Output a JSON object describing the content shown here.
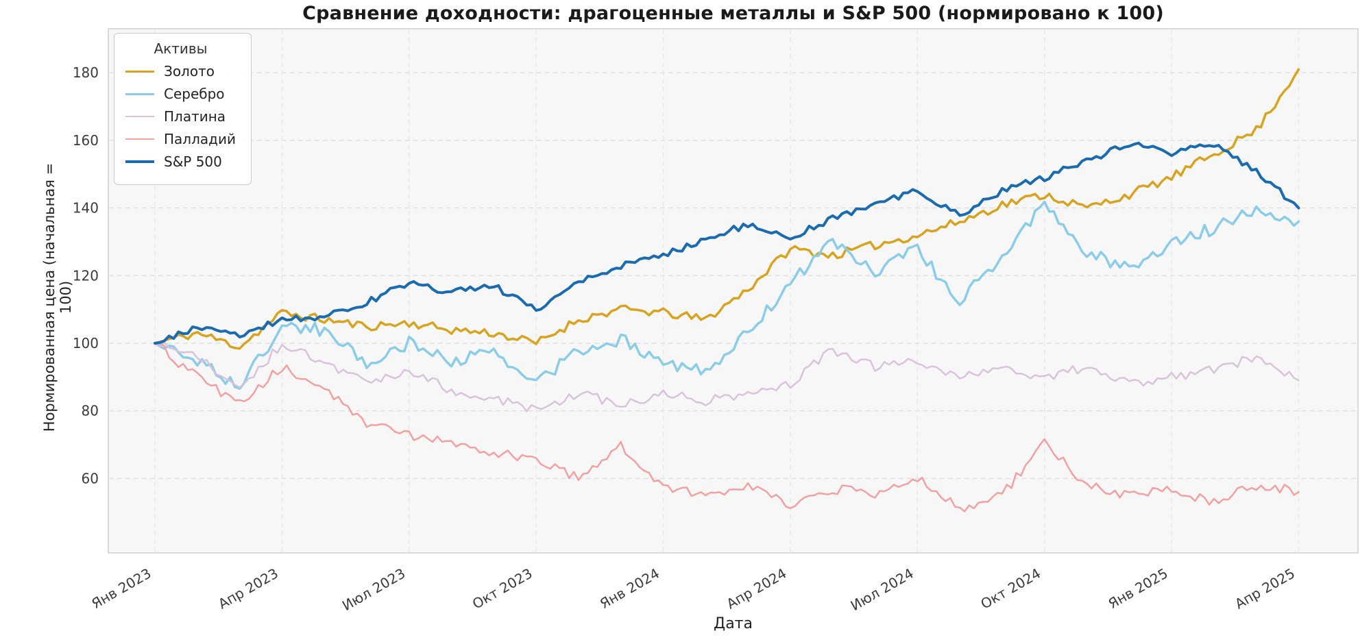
{
  "chart_data": {
    "type": "line",
    "title": "Сравнение доходности: драгоценные металлы и S&P 500 (нормировано к 100)",
    "xlabel": "Дата",
    "ylabel": "Нормированная цена (начальная = 100)",
    "legend_title": "Активы",
    "legend_position": "upper left",
    "grid": "dashed",
    "plot_bg": "#f7f7f7",
    "grid_color": "#dfdfdf",
    "ylim": [
      38,
      193
    ],
    "yticks": [
      60,
      80,
      100,
      120,
      140,
      160,
      180
    ],
    "x_unit": "months_since_2023-01",
    "xticks": [
      {
        "m": 0,
        "label": "Янв 2023"
      },
      {
        "m": 3,
        "label": "Апр 2023"
      },
      {
        "m": 6,
        "label": "Июл 2023"
      },
      {
        "m": 9,
        "label": "Окт 2023"
      },
      {
        "m": 12,
        "label": "Янв 2024"
      },
      {
        "m": 15,
        "label": "Апр 2024"
      },
      {
        "m": 18,
        "label": "Июл 2024"
      },
      {
        "m": 21,
        "label": "Окт 2024"
      },
      {
        "m": 24,
        "label": "Янв 2025"
      },
      {
        "m": 27,
        "label": "Апр 2025"
      }
    ],
    "series": [
      {
        "name": "Золото",
        "color": "#d8a420",
        "width": 3.5,
        "noise": 1.3,
        "values": [
          100,
          103,
          99,
          109,
          107,
          105,
          106,
          104,
          103,
          100,
          107,
          110,
          109,
          107,
          116,
          128,
          126,
          129,
          132,
          136,
          141,
          144,
          140,
          144,
          149,
          156,
          163,
          181
        ]
      },
      {
        "name": "Серебро",
        "color": "#8bcde9",
        "width": 3.5,
        "noise": 1.9,
        "values": [
          100,
          95,
          87,
          105,
          104,
          94,
          100,
          95,
          97,
          88,
          98,
          101,
          95,
          91,
          103,
          118,
          130,
          121,
          128,
          112,
          126,
          141,
          127,
          122,
          130,
          134,
          140,
          136
        ]
      },
      {
        "name": "Платина",
        "color": "#d9c2db",
        "width": 2.5,
        "noise": 1.4,
        "values": [
          100,
          96,
          86,
          100,
          94,
          88,
          92,
          86,
          84,
          80,
          85,
          82,
          85,
          83,
          85,
          88,
          98,
          93,
          95,
          90,
          92,
          90,
          93,
          88,
          90,
          92,
          96,
          89
        ]
      },
      {
        "name": "Палладий",
        "color": "#f2a0a0",
        "width": 2.5,
        "noise": 1.5,
        "values": [
          100,
          90,
          82,
          93,
          86,
          76,
          73,
          70,
          68,
          65,
          60,
          70,
          58,
          55,
          58,
          52,
          57,
          55,
          60,
          51,
          55,
          71,
          58,
          55,
          57,
          53,
          58,
          56
        ]
      },
      {
        "name": "S&P 500",
        "color": "#1a6bb0",
        "width": 4,
        "noise": 1.0,
        "values": [
          100,
          105,
          102,
          107,
          108,
          112,
          118,
          115,
          117,
          110,
          118,
          123,
          126,
          131,
          135,
          131,
          137,
          141,
          145,
          138,
          145,
          149,
          154,
          159,
          156,
          159,
          151,
          140
        ]
      }
    ]
  }
}
